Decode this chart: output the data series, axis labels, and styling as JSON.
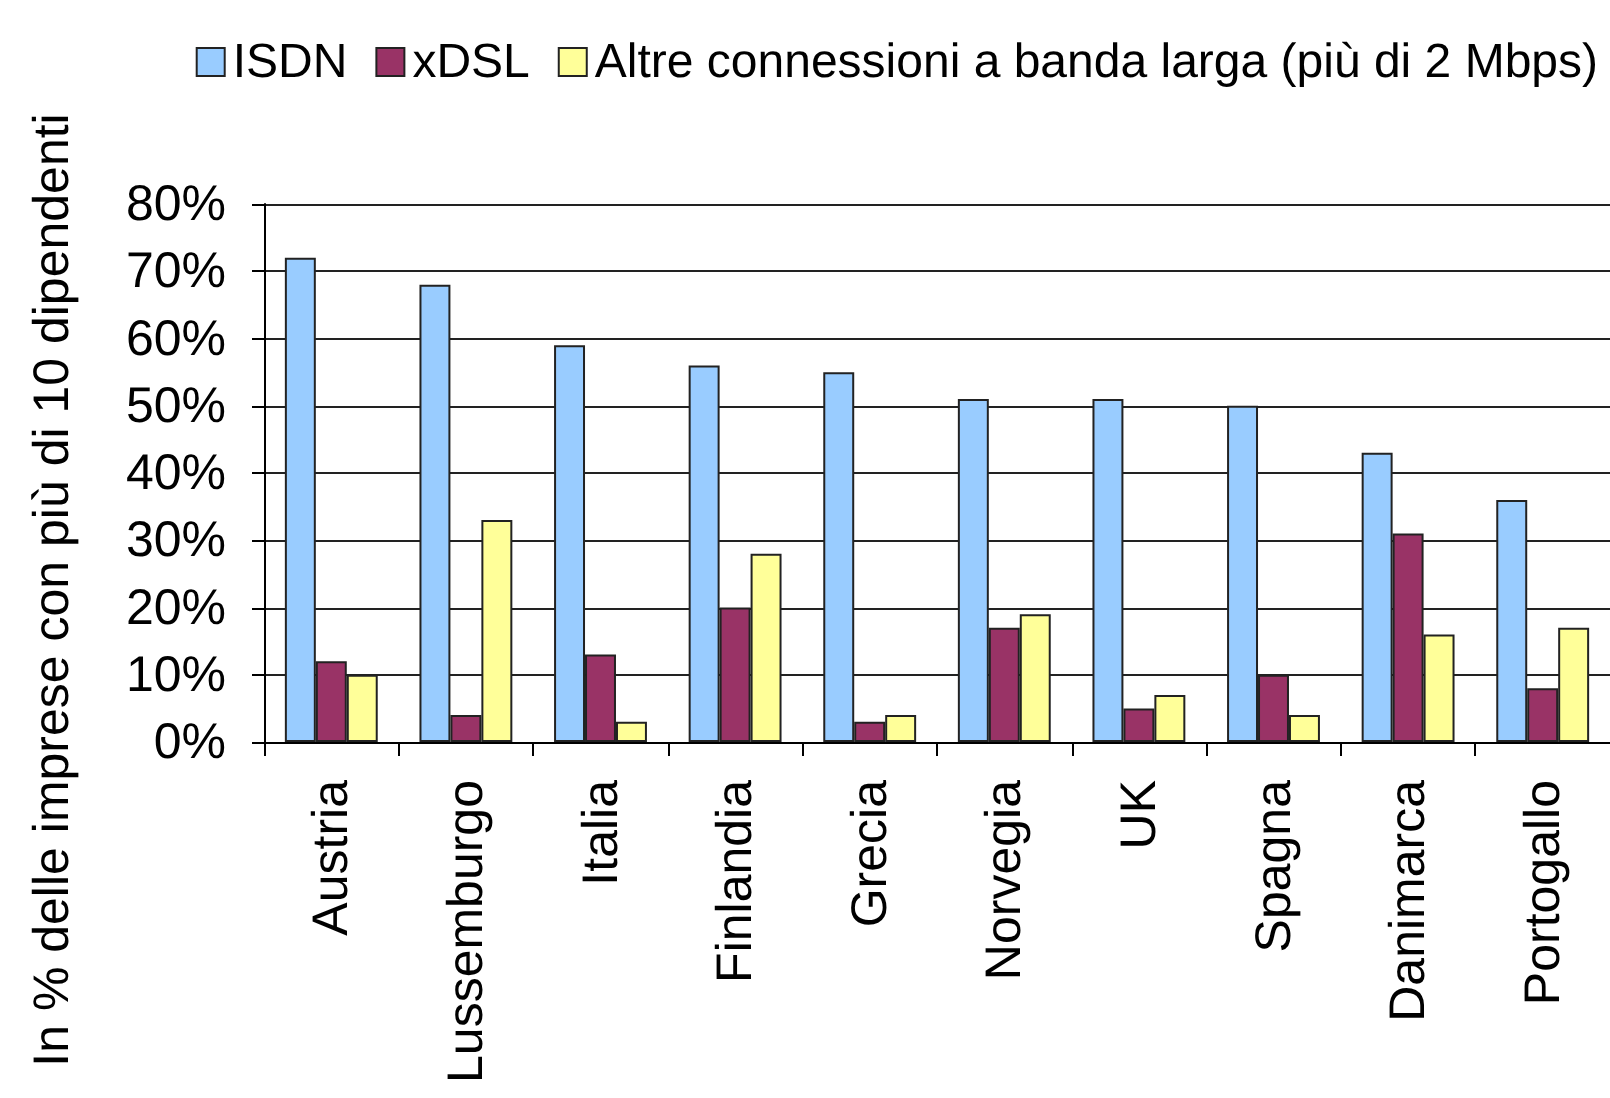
{
  "chart_data": {
    "type": "bar",
    "ylabel": "In % delle imprese con più di 10 dipendenti",
    "categories": [
      "Austria",
      "Lussemburgo",
      "Italia",
      "Finlandia",
      "Grecia",
      "Norvegia",
      "UK",
      "Spagna",
      "Danimarca",
      "Portogallo"
    ],
    "series": [
      {
        "name": "ISDN",
        "color": "#99ccff",
        "values": [
          72,
          68,
          59,
          56,
          55,
          51,
          51,
          50,
          43,
          36
        ]
      },
      {
        "name": "xDSL",
        "color": "#993366",
        "values": [
          12,
          4,
          13,
          20,
          3,
          17,
          5,
          10,
          31,
          8
        ]
      },
      {
        "name": "Altre connessioni a banda larga (più di 2 Mbps)",
        "color": "#ffff99",
        "values": [
          10,
          33,
          3,
          28,
          4,
          19,
          7,
          4,
          16,
          17
        ]
      }
    ],
    "ylim": [
      0,
      80
    ],
    "yticks": [
      {
        "value": 0,
        "label": "0%"
      },
      {
        "value": 10,
        "label": "10%"
      },
      {
        "value": 20,
        "label": "20%"
      },
      {
        "value": 30,
        "label": "30%"
      },
      {
        "value": 40,
        "label": "40%"
      },
      {
        "value": 50,
        "label": "50%"
      },
      {
        "value": 60,
        "label": "60%"
      },
      {
        "value": 70,
        "label": "70%"
      },
      {
        "value": 80,
        "label": "80%"
      }
    ],
    "grid": "y",
    "legend": "top"
  }
}
